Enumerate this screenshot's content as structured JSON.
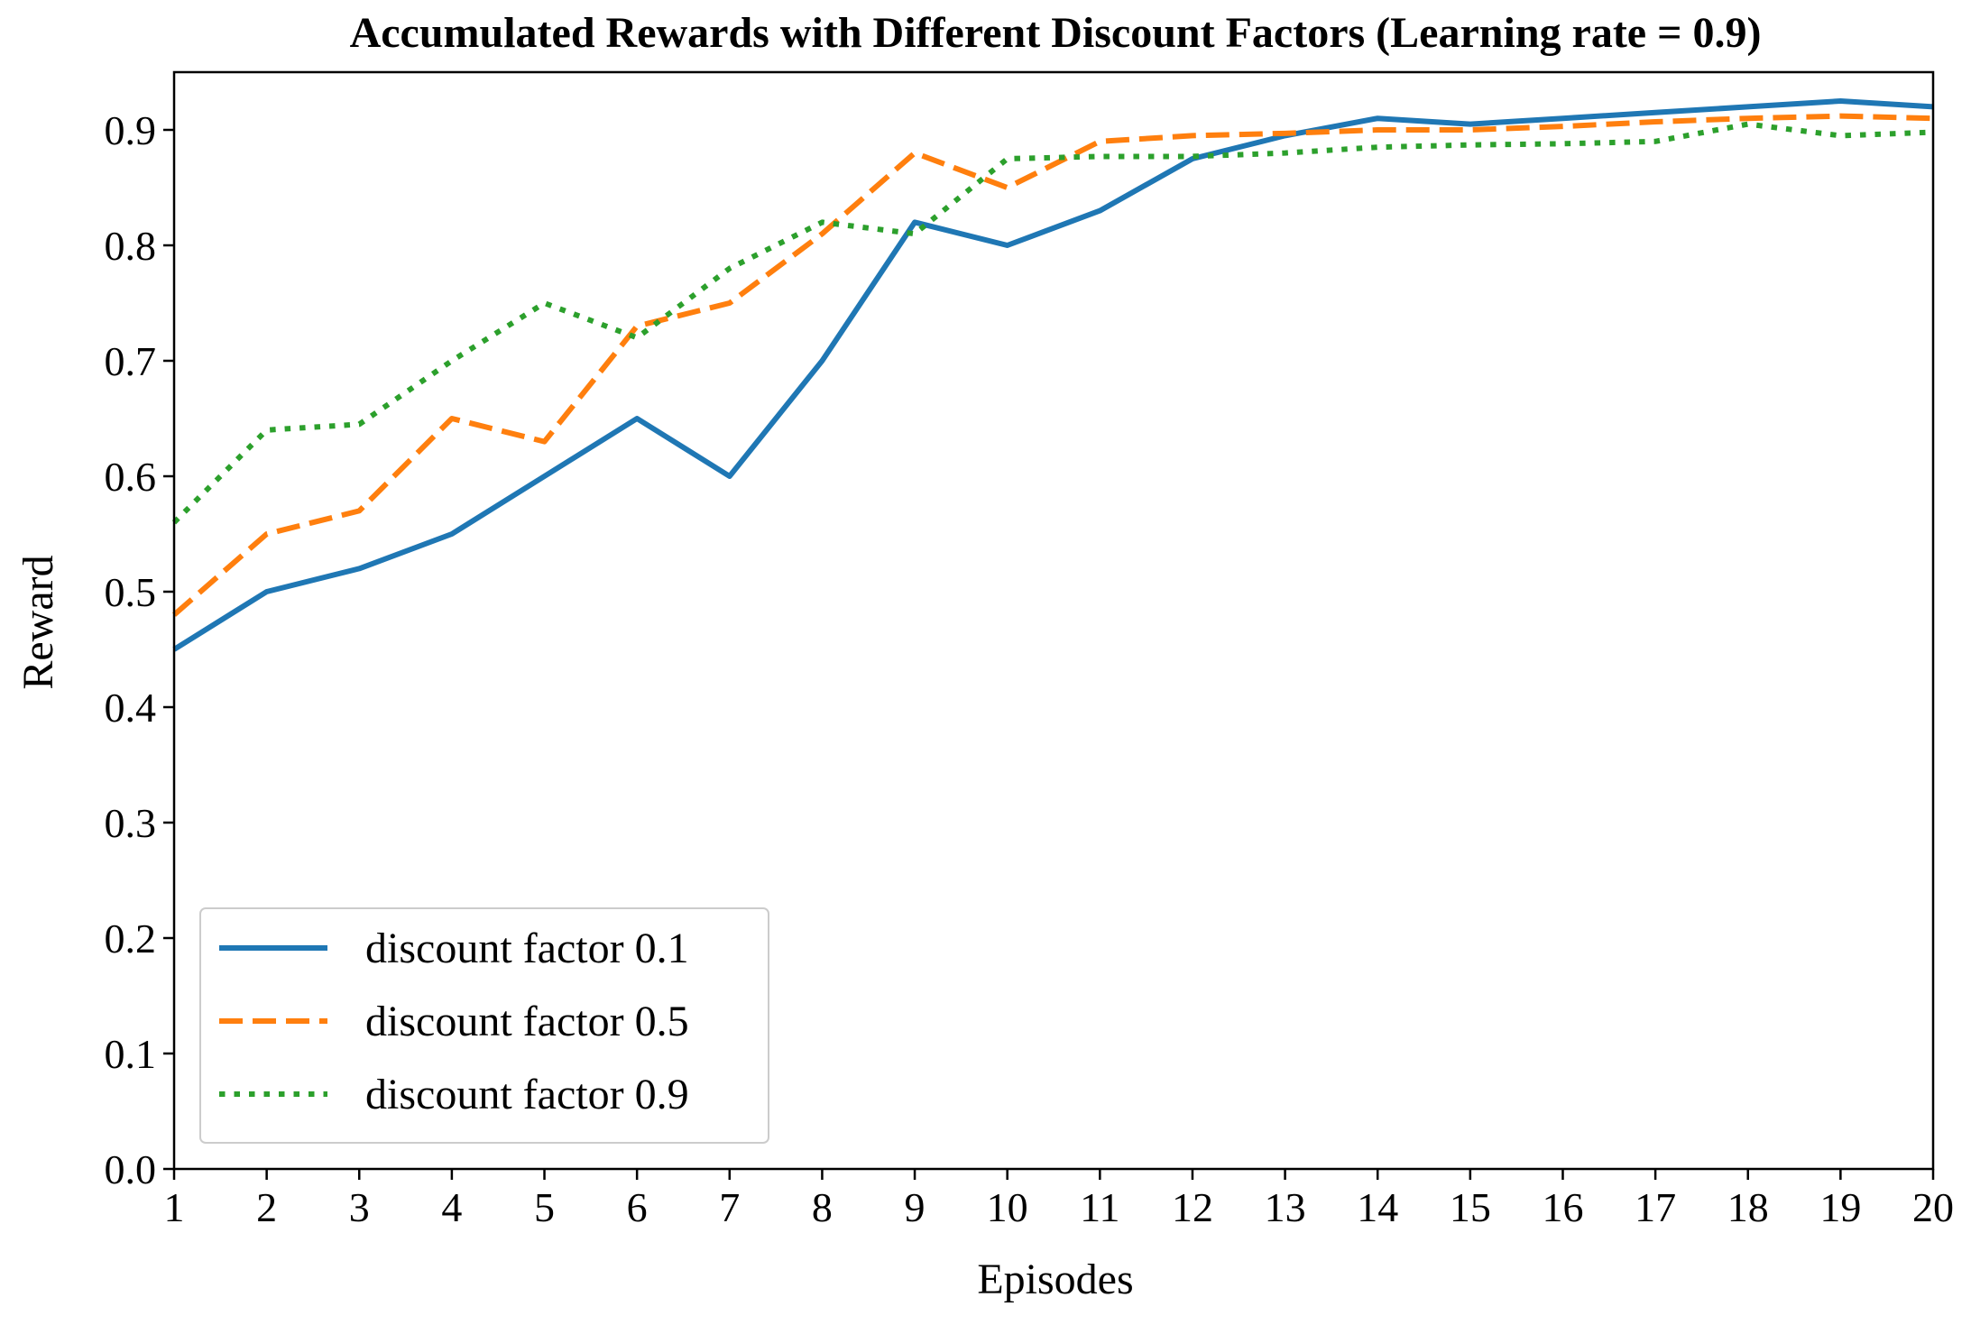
{
  "chart_data": {
    "type": "line",
    "title": "Accumulated Rewards with Different Discount Factors (Learning rate = 0.9)",
    "xlabel": "Episodes",
    "ylabel": "Reward",
    "xlim": [
      1,
      20
    ],
    "ylim": [
      0.0,
      0.95
    ],
    "x": [
      1,
      2,
      3,
      4,
      5,
      6,
      7,
      8,
      9,
      10,
      11,
      12,
      13,
      14,
      15,
      16,
      17,
      18,
      19,
      20
    ],
    "xticks": [
      "1",
      "2",
      "3",
      "4",
      "5",
      "6",
      "7",
      "8",
      "9",
      "10",
      "11",
      "12",
      "13",
      "14",
      "15",
      "16",
      "17",
      "18",
      "19",
      "20"
    ],
    "yticks": [
      "0.0",
      "0.1",
      "0.2",
      "0.3",
      "0.4",
      "0.5",
      "0.6",
      "0.7",
      "0.8",
      "0.9"
    ],
    "ytick_values": [
      0.0,
      0.1,
      0.2,
      0.3,
      0.4,
      0.5,
      0.6,
      0.7,
      0.8,
      0.9
    ],
    "grid": false,
    "legend_position": "lower-left",
    "series": [
      {
        "name": "discount factor 0.1",
        "color": "#1f77b4",
        "linestyle": "solid",
        "values": [
          0.45,
          0.5,
          0.52,
          0.55,
          0.6,
          0.65,
          0.6,
          0.7,
          0.82,
          0.8,
          0.83,
          0.875,
          0.895,
          0.91,
          0.905,
          0.91,
          0.915,
          0.92,
          0.925,
          0.92
        ]
      },
      {
        "name": "discount factor 0.5",
        "color": "#ff7f0e",
        "linestyle": "dashed",
        "values": [
          0.48,
          0.55,
          0.57,
          0.65,
          0.63,
          0.73,
          0.75,
          0.81,
          0.88,
          0.85,
          0.89,
          0.895,
          0.897,
          0.9,
          0.9,
          0.903,
          0.907,
          0.91,
          0.912,
          0.91
        ]
      },
      {
        "name": "discount factor 0.9",
        "color": "#2ca02c",
        "linestyle": "dotted",
        "values": [
          0.56,
          0.64,
          0.645,
          0.7,
          0.75,
          0.72,
          0.78,
          0.82,
          0.81,
          0.875,
          0.877,
          0.877,
          0.88,
          0.885,
          0.887,
          0.888,
          0.89,
          0.905,
          0.895,
          0.898
        ]
      }
    ]
  }
}
